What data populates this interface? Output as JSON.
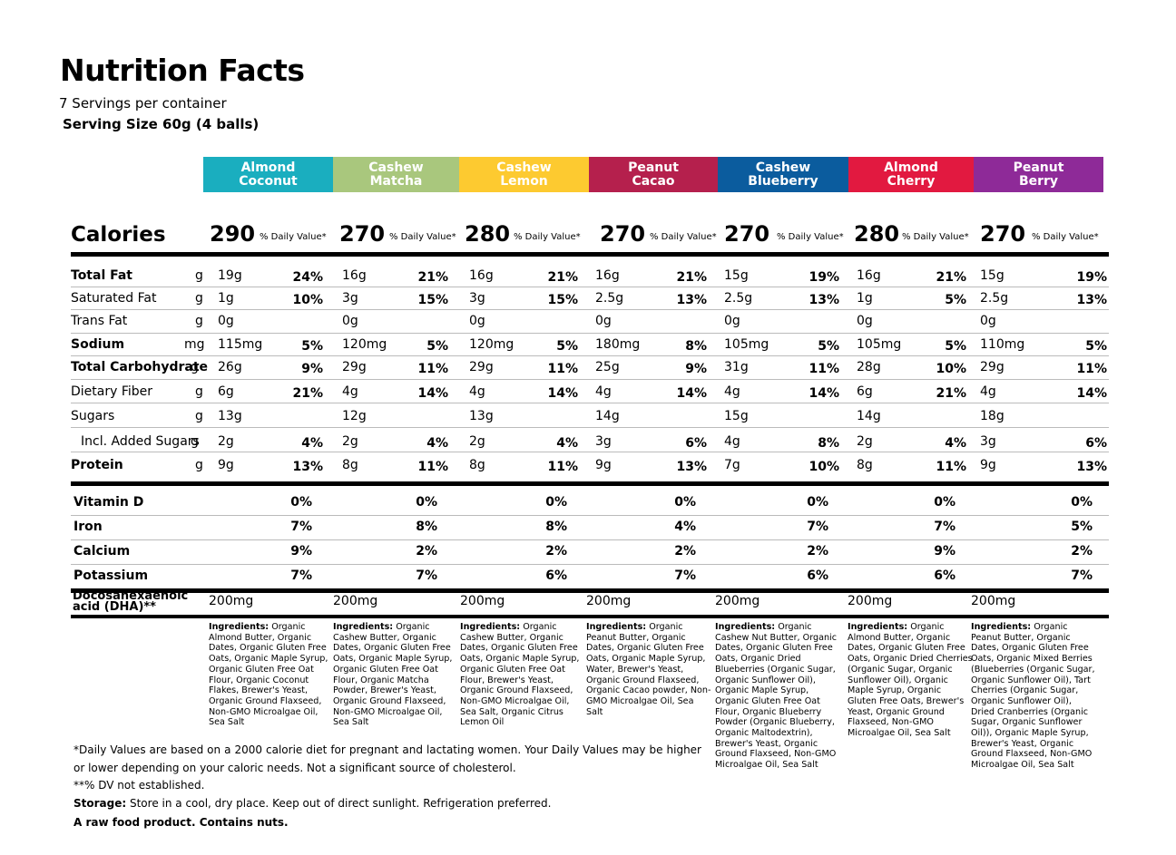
{
  "title": "Nutrition Facts",
  "servings": "7 Servings per container",
  "serving_size": "Serving Size 60g (4 balls)",
  "calories_label": "Calories",
  "dv_label": "% Daily Value*",
  "flavors": [
    {
      "name": "Almond Coconut",
      "color": "#1aaebf",
      "calories": "290",
      "vals": [
        "19g",
        "1g",
        "0g",
        "115mg",
        "26g",
        "6g",
        "13g",
        "2g",
        "9g"
      ],
      "pcts": [
        "24%",
        "10%",
        "",
        "5%",
        "9%",
        "21%",
        "",
        "4%",
        "13%"
      ],
      "vit": [
        "0%",
        "7%",
        "9%",
        "7%"
      ],
      "dha": "200mg",
      "ing_label": "Ingredients:",
      "ing": "Organic Almond Butter, Organic Dates, Organic Gluten Free Oats, Organic Maple Syrup, Organic Gluten Free Oat Flour, Organic Coconut Flakes, Brewer's Yeast, Organic Ground Flaxseed, Non-GMO Microalgae Oil, Sea Salt"
    },
    {
      "name": "Cashew Matcha",
      "color": "#a9c77d",
      "calories": "270",
      "vals": [
        "16g",
        "3g",
        "0g",
        "120mg",
        "29g",
        "4g",
        "12g",
        "2g",
        "8g"
      ],
      "pcts": [
        "21%",
        "15%",
        "",
        "5%",
        "11%",
        "14%",
        "",
        "4%",
        "11%"
      ],
      "vit": [
        "0%",
        "8%",
        "2%",
        "7%"
      ],
      "dha": "200mg",
      "ing_label": "Ingredients:",
      "ing": "Organic Cashew Butter, Organic Dates, Organic Gluten Free Oats, Organic Maple Syrup, Organic Gluten Free Oat Flour, Organic Matcha Powder, Brewer's Yeast, Organic Ground Flaxseed, Non-GMO Microalgae Oil, Sea Salt"
    },
    {
      "name": "Cashew Lemon",
      "color": "#fdca30",
      "calories": "280",
      "vals": [
        "16g",
        "3g",
        "0g",
        "120mg",
        "29g",
        "4g",
        "13g",
        "2g",
        "8g"
      ],
      "pcts": [
        "21%",
        "15%",
        "",
        "5%",
        "11%",
        "14%",
        "",
        "4%",
        "11%"
      ],
      "vit": [
        "0%",
        "8%",
        "2%",
        "6%"
      ],
      "dha": "200mg",
      "ing_label": "Ingredients:",
      "ing": "Organic Cashew Butter, Organic Dates, Organic Gluten Free Oats, Organic Maple Syrup, Organic Gluten Free Oat Flour, Brewer's Yeast, Organic Ground Flaxseed, Non-GMO Microalgae Oil, Sea Salt, Organic Citrus Lemon Oil"
    },
    {
      "name": "Peanut Cacao",
      "color": "#b5204d",
      "calories": "270",
      "vals": [
        "16g",
        "2.5g",
        "0g",
        "180mg",
        "25g",
        "4g",
        "14g",
        "3g",
        "9g"
      ],
      "pcts": [
        "21%",
        "13%",
        "",
        "8%",
        "9%",
        "14%",
        "",
        "6%",
        "13%"
      ],
      "vit": [
        "0%",
        "4%",
        "2%",
        "7%"
      ],
      "dha": "200mg",
      "ing_label": "Ingredients:",
      "ing": "Organic Peanut Butter, Organic Dates, Organic Gluten Free Oats, Organic Maple Syrup, Water, Brewer's Yeast, Organic Ground Flaxseed, Organic Cacao powder, Non-GMO Microalgae Oil, Sea Salt"
    },
    {
      "name": "Cashew Blueberry",
      "color": "#0b5c9e",
      "calories": "270",
      "vals": [
        "15g",
        "2.5g",
        "0g",
        "105mg",
        "31g",
        "4g",
        "15g",
        "4g",
        "7g"
      ],
      "pcts": [
        "19%",
        "13%",
        "",
        "5%",
        "11%",
        "14%",
        "",
        "8%",
        "10%"
      ],
      "vit": [
        "0%",
        "7%",
        "2%",
        "6%"
      ],
      "dha": "200mg",
      "ing_label": "Ingredients:",
      "ing": "Organic Cashew Nut Butter, Organic Dates, Organic Gluten Free Oats, Organic Dried Blueberries (Organic Sugar, Organic Sunflower Oil), Organic Maple Syrup, Organic Gluten Free Oat Flour, Organic Blueberry Powder (Organic Blueberry, Organic Maltodextrin), Brewer's Yeast, Organic Ground Flaxseed, Non-GMO Microalgae Oil, Sea Salt"
    },
    {
      "name": "Almond Cherry",
      "color": "#e21940",
      "calories": "280",
      "vals": [
        "16g",
        "1g",
        "0g",
        "105mg",
        "28g",
        "6g",
        "14g",
        "2g",
        "8g"
      ],
      "pcts": [
        "21%",
        "5%",
        "",
        "5%",
        "10%",
        "21%",
        "",
        "4%",
        "11%"
      ],
      "vit": [
        "0%",
        "7%",
        "9%",
        "6%"
      ],
      "dha": "200mg",
      "ing_label": "Ingredients:",
      "ing": "Organic Almond Butter, Organic Dates, Organic Gluten Free Oats, Organic Dried Cherries (Organic Sugar, Organic Sunflower Oil), Organic Maple Syrup, Organic Gluten Free Oats, Brewer's Yeast, Organic Ground Flaxseed, Non-GMO Microalgae Oil, Sea Salt"
    },
    {
      "name": "Peanut Berry",
      "color": "#8e2a98",
      "calories": "270",
      "vals": [
        "15g",
        "2.5g",
        "0g",
        "110mg",
        "29g",
        "4g",
        "18g",
        "3g",
        "9g"
      ],
      "pcts": [
        "19%",
        "13%",
        "",
        "5%",
        "11%",
        "14%",
        "",
        "6%",
        "13%"
      ],
      "vit": [
        "0%",
        "5%",
        "2%",
        "7%"
      ],
      "dha": "200mg",
      "ing_label": "Ingredients:",
      "ing": "Organic Peanut Butter, Organic Dates, Organic Gluten Free Oats, Organic Mixed Berries (Blueberries (Organic Sugar, Organic Sunflower Oil), Tart Cherries (Organic Sugar, Organic Sunflower Oil), Dried Cranberries (Organic Sugar, Organic Sunflower Oil)), Organic Maple Syrup, Brewer's Yeast, Organic Ground Flaxseed, Non-GMO Microalgae Oil, Sea Salt"
    }
  ],
  "nutrients": [
    {
      "label": "Total Fat",
      "unit": "g",
      "bold": true
    },
    {
      "label": "Saturated Fat",
      "unit": "g",
      "bold": false
    },
    {
      "label": "Trans Fat",
      "unit": "g",
      "bold": false
    },
    {
      "label": "Sodium",
      "unit": "mg",
      "bold": true
    },
    {
      "label": "Total Carbohydrate",
      "unit": "g",
      "bold": true
    },
    {
      "label": "Dietary Fiber",
      "unit": "g",
      "bold": false
    },
    {
      "label": "Sugars",
      "unit": "g",
      "bold": false
    },
    {
      "label": "Incl. Added Sugars",
      "unit": "g",
      "bold": false
    },
    {
      "label": "Protein",
      "unit": "g",
      "bold": true
    }
  ],
  "vitamins": [
    "Vitamin D",
    "Iron",
    "Calcium",
    "Potassium"
  ],
  "dha_label": "Docosahexaenoic acid (DHA)**",
  "footnote_dv": "*Daily Values are based on a 2000 calorie diet for pregnant and lactating women. Your Daily Values may be higher or lower depending on your caloric needs. Not a significant source of cholesterol.",
  "footnote_dha": "**% DV not established.",
  "storage_label": "Storage:",
  "storage_text": " Store in a cool, dry place. Keep out of direct sunlight. Refrigeration preferred.",
  "raw_note": "A raw food product. Contains nuts."
}
